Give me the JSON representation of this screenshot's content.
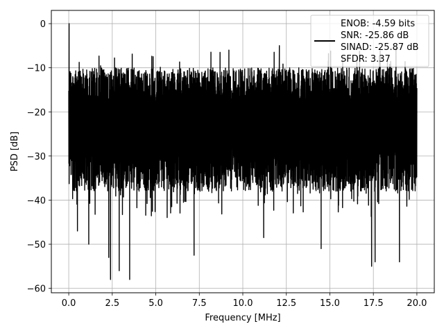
{
  "chart_data": {
    "type": "line",
    "title": "",
    "xlabel": "Frequency [MHz]",
    "ylabel": "PSD [dB]",
    "xlim": [
      -1.0,
      21.0
    ],
    "ylim": [
      -61.0,
      3.0
    ],
    "x_ticks": [
      0.0,
      2.5,
      5.0,
      7.5,
      10.0,
      12.5,
      15.0,
      17.5,
      20.0
    ],
    "x_tick_labels": [
      "0.0",
      "2.5",
      "5.0",
      "7.5",
      "10.0",
      "12.5",
      "15.0",
      "17.5",
      "20.0"
    ],
    "y_ticks": [
      0,
      -10,
      -20,
      -30,
      -40,
      -50,
      -60
    ],
    "y_tick_labels": [
      "0",
      "−10",
      "−20",
      "−30",
      "−40",
      "−50",
      "−60"
    ],
    "grid": true,
    "legend_position": "top-right",
    "legend_lines": [
      "ENOB: -4.59 bits",
      "SNR: -25.86 dB",
      "SINAD: -25.87 dB",
      "SFDR: 3.37"
    ],
    "series": [
      {
        "color": "#000000",
        "x_start": 0.0,
        "x_end": 20.0,
        "peak": {
          "x": 0.02,
          "y": 0.0
        },
        "typical_upper_envelope_db": -10,
        "typical_lower_envelope_db": -33,
        "notable_spikes": [
          {
            "x": 0.5,
            "y": -47
          },
          {
            "x": 1.15,
            "y": -50
          },
          {
            "x": 2.3,
            "y": -53
          },
          {
            "x": 2.4,
            "y": -58
          },
          {
            "x": 2.9,
            "y": -56
          },
          {
            "x": 3.5,
            "y": -58
          },
          {
            "x": 7.2,
            "y": -52.5
          },
          {
            "x": 11.2,
            "y": -48.5
          },
          {
            "x": 14.5,
            "y": -51
          },
          {
            "x": 17.4,
            "y": -55
          },
          {
            "x": 17.6,
            "y": -54
          },
          {
            "x": 19.0,
            "y": -54
          },
          {
            "x": 12.1,
            "y": -5
          },
          {
            "x": 9.2,
            "y": -6
          },
          {
            "x": 18.8,
            "y": -5.5
          }
        ]
      }
    ]
  }
}
